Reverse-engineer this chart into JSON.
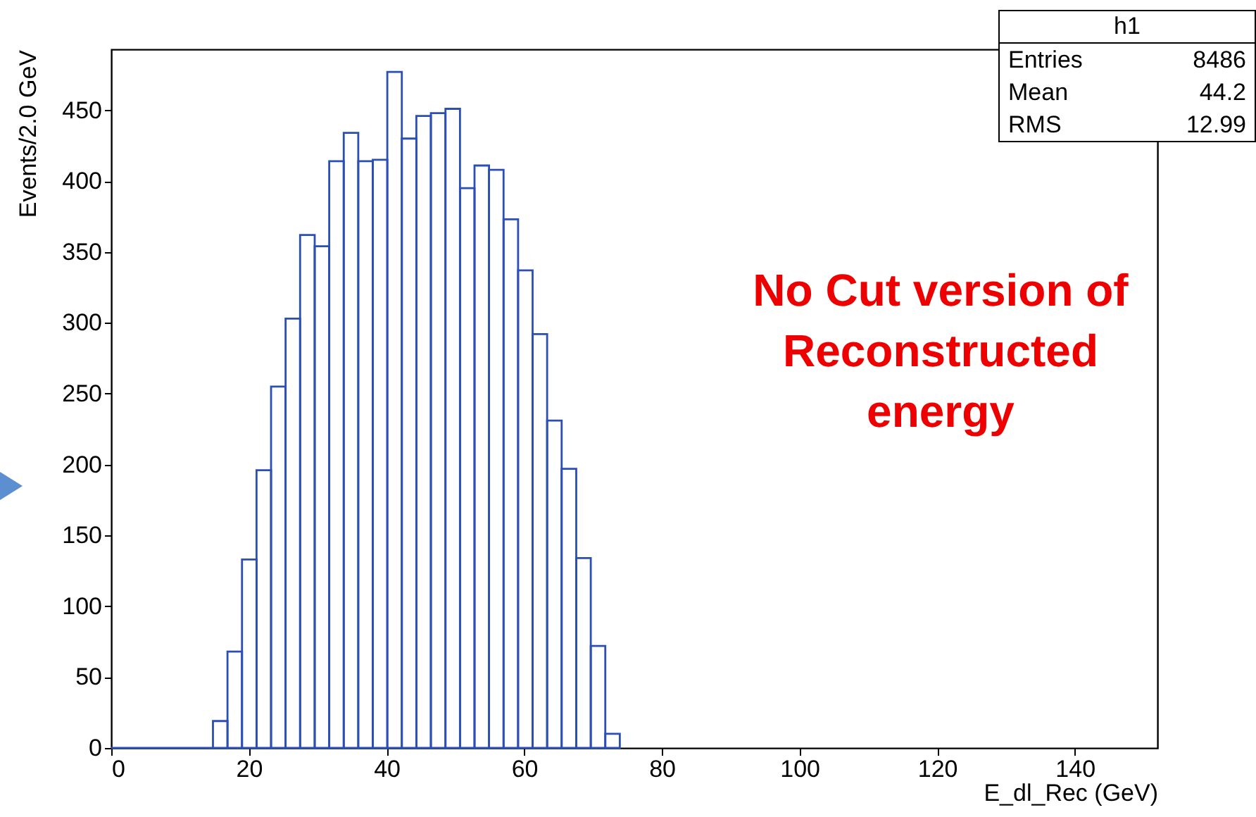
{
  "chart_data": {
    "type": "histogram",
    "xlabel": "E_dl_Rec (GeV)",
    "ylabel": "Events/2.0 GeV",
    "bins": [
      0,
      14.78,
      16.89,
      19.0,
      21.11,
      23.22,
      25.33,
      27.44,
      29.56,
      31.67,
      33.78,
      35.89,
      38.0,
      40.11,
      42.22,
      44.33,
      46.44,
      48.56,
      50.67,
      52.78,
      54.89,
      57.0,
      59.11,
      61.22,
      63.33,
      65.44,
      67.56,
      69.67,
      71.78,
      73.89
    ],
    "values": [
      0,
      19,
      68,
      133,
      196,
      255,
      303,
      362,
      354,
      414,
      434,
      414,
      415,
      477,
      430,
      446,
      448,
      451,
      395,
      411,
      408,
      373,
      337,
      292,
      231,
      197,
      134,
      72,
      10
    ],
    "color": "#2b4fb5",
    "xlim": [
      0,
      152
    ],
    "xticks": [
      0,
      20,
      40,
      60,
      80,
      100,
      120,
      140
    ],
    "ylim": [
      0,
      493
    ],
    "yticks": [
      0,
      50,
      100,
      150,
      200,
      250,
      300,
      350,
      400,
      450
    ],
    "grid": false,
    "annotations": [
      "h1",
      "Entries 8486",
      "Mean 44.2",
      "RMS 12.99",
      "No Cut version of Reconstructed energy"
    ]
  }
}
